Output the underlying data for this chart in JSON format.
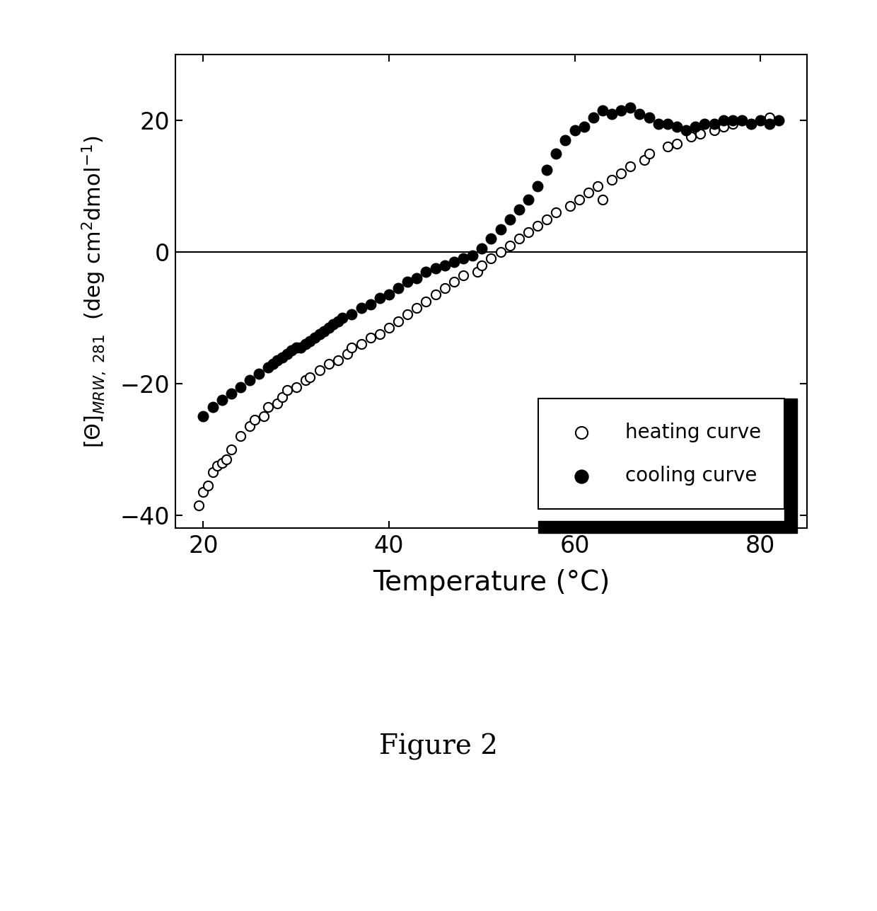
{
  "heating_x": [
    19.5,
    20.0,
    20.5,
    21.0,
    21.5,
    22.0,
    22.5,
    23.0,
    24.0,
    25.0,
    25.5,
    26.5,
    27.0,
    28.0,
    28.5,
    29.0,
    30.0,
    31.0,
    31.5,
    32.5,
    33.5,
    34.5,
    35.5,
    36.0,
    37.0,
    38.0,
    39.0,
    40.0,
    41.0,
    42.0,
    43.0,
    44.0,
    45.0,
    46.0,
    47.0,
    48.0,
    49.5,
    50.0,
    51.0,
    52.0,
    53.0,
    54.0,
    55.0,
    56.0,
    57.0,
    58.0,
    59.5,
    60.5,
    61.5,
    62.5,
    63.0,
    64.0,
    65.0,
    66.0,
    67.5,
    68.0,
    70.0,
    71.0,
    72.5,
    73.5,
    75.0,
    76.0,
    77.0,
    78.0,
    79.0,
    80.0,
    81.0
  ],
  "heating_y": [
    -38.5,
    -36.5,
    -35.5,
    -33.5,
    -32.5,
    -32.0,
    -31.5,
    -30.0,
    -28.0,
    -26.5,
    -25.5,
    -25.0,
    -23.5,
    -23.0,
    -22.0,
    -21.0,
    -20.5,
    -19.5,
    -19.0,
    -18.0,
    -17.0,
    -16.5,
    -15.5,
    -14.5,
    -14.0,
    -13.0,
    -12.5,
    -11.5,
    -10.5,
    -9.5,
    -8.5,
    -7.5,
    -6.5,
    -5.5,
    -4.5,
    -3.5,
    -3.0,
    -2.0,
    -1.0,
    0.0,
    1.0,
    2.0,
    3.0,
    4.0,
    5.0,
    6.0,
    7.0,
    8.0,
    9.0,
    10.0,
    8.0,
    11.0,
    12.0,
    13.0,
    14.0,
    15.0,
    16.0,
    16.5,
    17.5,
    18.0,
    18.5,
    19.0,
    19.5,
    20.0,
    19.5,
    20.0,
    20.5
  ],
  "cooling_x": [
    20.0,
    21.0,
    22.0,
    23.0,
    24.0,
    25.0,
    26.0,
    27.0,
    27.5,
    28.0,
    28.5,
    29.0,
    29.5,
    30.0,
    30.5,
    31.0,
    31.5,
    32.0,
    32.5,
    33.0,
    33.5,
    34.0,
    34.5,
    35.0,
    36.0,
    37.0,
    38.0,
    39.0,
    40.0,
    41.0,
    42.0,
    43.0,
    44.0,
    45.0,
    46.0,
    47.0,
    48.0,
    49.0,
    50.0,
    51.0,
    52.0,
    53.0,
    54.0,
    55.0,
    56.0,
    57.0,
    58.0,
    59.0,
    60.0,
    61.0,
    62.0,
    63.0,
    64.0,
    65.0,
    66.0,
    67.0,
    68.0,
    69.0,
    70.0,
    71.0,
    72.0,
    73.0,
    74.0,
    75.0,
    76.0,
    77.0,
    78.0,
    79.0,
    80.0,
    81.0,
    82.0
  ],
  "cooling_y": [
    -25.0,
    -23.5,
    -22.5,
    -21.5,
    -20.5,
    -19.5,
    -18.5,
    -17.5,
    -17.0,
    -16.5,
    -16.0,
    -15.5,
    -15.0,
    -14.5,
    -14.5,
    -14.0,
    -13.5,
    -13.0,
    -12.5,
    -12.0,
    -11.5,
    -11.0,
    -10.5,
    -10.0,
    -9.5,
    -8.5,
    -8.0,
    -7.0,
    -6.5,
    -5.5,
    -4.5,
    -4.0,
    -3.0,
    -2.5,
    -2.0,
    -1.5,
    -1.0,
    -0.5,
    0.5,
    2.0,
    3.5,
    5.0,
    6.5,
    8.0,
    10.0,
    12.5,
    15.0,
    17.0,
    18.5,
    19.0,
    20.5,
    21.5,
    21.0,
    21.5,
    22.0,
    21.0,
    20.5,
    19.5,
    19.5,
    19.0,
    18.5,
    19.0,
    19.5,
    19.5,
    20.0,
    20.0,
    20.0,
    19.5,
    20.0,
    19.5,
    20.0
  ],
  "xlabel": "Temperature (°C)",
  "xlim": [
    17,
    85
  ],
  "ylim": [
    -42,
    30
  ],
  "xticks": [
    20,
    40,
    60,
    80
  ],
  "yticks": [
    -40,
    -20,
    0,
    20
  ],
  "figure_caption": "Figure 2",
  "legend_heating": "heating curve",
  "legend_cooling": "cooling curve"
}
